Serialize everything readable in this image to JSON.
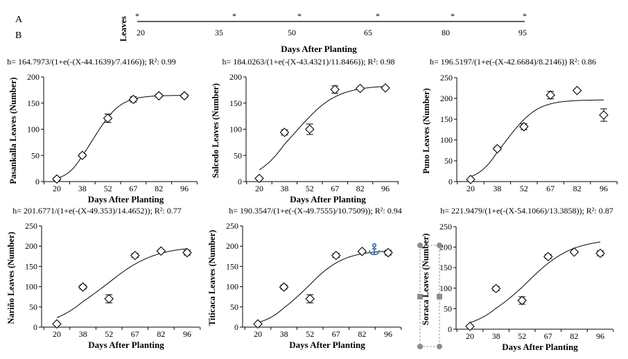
{
  "header": {
    "label_a": "A",
    "label_b": "B",
    "axis_label": "Leaves",
    "ticks": [
      "20",
      "35",
      "50",
      "65",
      "80",
      "95"
    ],
    "marker": "*",
    "xlabel": "Days After Planting"
  },
  "chart_data": [
    {
      "type": "scatter",
      "formula": "h= 164.7973/(1+e(-(X-44.1639)/7.4166)); R²: 0.99",
      "fit": {
        "a": 164.7973,
        "x0": 44.1639,
        "b": 7.4166
      },
      "ylabel": "Pasankalla Leaves (Number)",
      "xlabel": "Days After Planting",
      "categories": [
        "20",
        "38",
        "52",
        "67",
        "82",
        "96"
      ],
      "x": [
        20,
        38,
        52,
        67,
        82,
        96
      ],
      "values": [
        5,
        50,
        121,
        157,
        164,
        164
      ],
      "errors": [
        3,
        3,
        8,
        5,
        3,
        3
      ],
      "ylim": [
        0,
        200
      ],
      "yticks": [
        "0",
        "50",
        "100",
        "150",
        "200"
      ]
    },
    {
      "type": "scatter",
      "formula": "h= 184.0263/(1+e(-(X-43.4321)/11.8466)); R²: 0.98",
      "fit": {
        "a": 184.0263,
        "x0": 43.4321,
        "b": 11.8466
      },
      "ylabel": "Salcedo Leaves (Number)",
      "xlabel": "Days After Planting",
      "categories": [
        "20",
        "38",
        "52",
        "67",
        "82",
        "96"
      ],
      "x": [
        20,
        38,
        52,
        67,
        82,
        96
      ],
      "values": [
        6,
        94,
        100,
        176,
        178,
        179
      ],
      "errors": [
        2,
        5,
        10,
        7,
        2,
        2
      ],
      "ylim": [
        0,
        200
      ],
      "yticks": [
        "0",
        "50",
        "100",
        "150",
        "200"
      ]
    },
    {
      "type": "scatter",
      "formula": "h= 196.5197/(1+e(-(X-42.6684)/8.2146)) R²: 0.86",
      "fit": {
        "a": 196.5197,
        "x0": 42.6684,
        "b": 8.2146
      },
      "ylabel": "Puno Leaves (Number)",
      "xlabel": "",
      "categories": [
        "20",
        "38",
        "52",
        "67",
        "82",
        "96"
      ],
      "x": [
        20,
        38,
        52,
        67,
        82,
        96
      ],
      "values": [
        5,
        79,
        132,
        208,
        219,
        160
      ],
      "errors": [
        2,
        4,
        7,
        9,
        2,
        15
      ],
      "ylim": [
        0,
        250
      ],
      "yticks": [
        "0",
        "50",
        "100",
        "150",
        "200",
        "250"
      ]
    },
    {
      "type": "scatter",
      "formula": "h= 201.6771/(1+e(-(X-49.353)/14.4652)); R²: 0.77",
      "fit": {
        "a": 201.6771,
        "x0": 49.353,
        "b": 14.4652
      },
      "ylabel": "Nariño Leaves (Number)",
      "xlabel": "Days After Planting",
      "categories": [
        "20",
        "38",
        "52",
        "67",
        "82",
        "96"
      ],
      "x": [
        20,
        38,
        52,
        67,
        82,
        96
      ],
      "values": [
        8,
        99,
        70,
        177,
        188,
        184
      ],
      "errors": [
        2,
        5,
        10,
        5,
        3,
        6
      ],
      "ylim": [
        0,
        250
      ],
      "yticks": [
        "0",
        "50",
        "100",
        "150",
        "200",
        "250"
      ]
    },
    {
      "type": "scatter",
      "formula": "h= 190.3547/(1+e(-(X-49.7555)/10.7509)); R²: 0.94",
      "fit": {
        "a": 190.3547,
        "x0": 49.7555,
        "b": 10.7509
      },
      "ylabel": "Titicaca Leaves (Number)",
      "xlabel": "Days After Planting",
      "categories": [
        "20",
        "38",
        "52",
        "67",
        "82",
        "96"
      ],
      "x": [
        20,
        38,
        52,
        67,
        82,
        96
      ],
      "values": [
        8,
        99,
        70,
        177,
        187,
        184
      ],
      "errors": [
        2,
        5,
        10,
        5,
        3,
        6
      ],
      "ylim": [
        0,
        250
      ],
      "yticks": [
        "0",
        "50",
        "100",
        "150",
        "200",
        "250"
      ]
    },
    {
      "type": "scatter",
      "formula": "h= 221.9479/(1+e(-(X-54.1066)/13.3858)); R²: 0.87",
      "fit": {
        "a": 221.9479,
        "x0": 54.1066,
        "b": 13.3858
      },
      "ylabel": "Soraca Leaves (Number)",
      "xlabel": "Days After Planting",
      "categories": [
        "20",
        "38",
        "52",
        "67",
        "82",
        "96"
      ],
      "x": [
        20,
        38,
        52,
        67,
        82,
        96
      ],
      "values": [
        7,
        99,
        70,
        177,
        188,
        185
      ],
      "errors": [
        2,
        5,
        9,
        5,
        3,
        6
      ],
      "ylim": [
        0,
        250
      ],
      "yticks": [
        "0",
        "50",
        "100",
        "150",
        "200",
        "250"
      ]
    }
  ],
  "colors": {
    "ink": "#000000",
    "anchor": "#4a7fb5",
    "handle": "#8c8c8c"
  },
  "overlay": {
    "anchor_icon": "anchor-icon",
    "selection": "text-box-selection-handles"
  }
}
